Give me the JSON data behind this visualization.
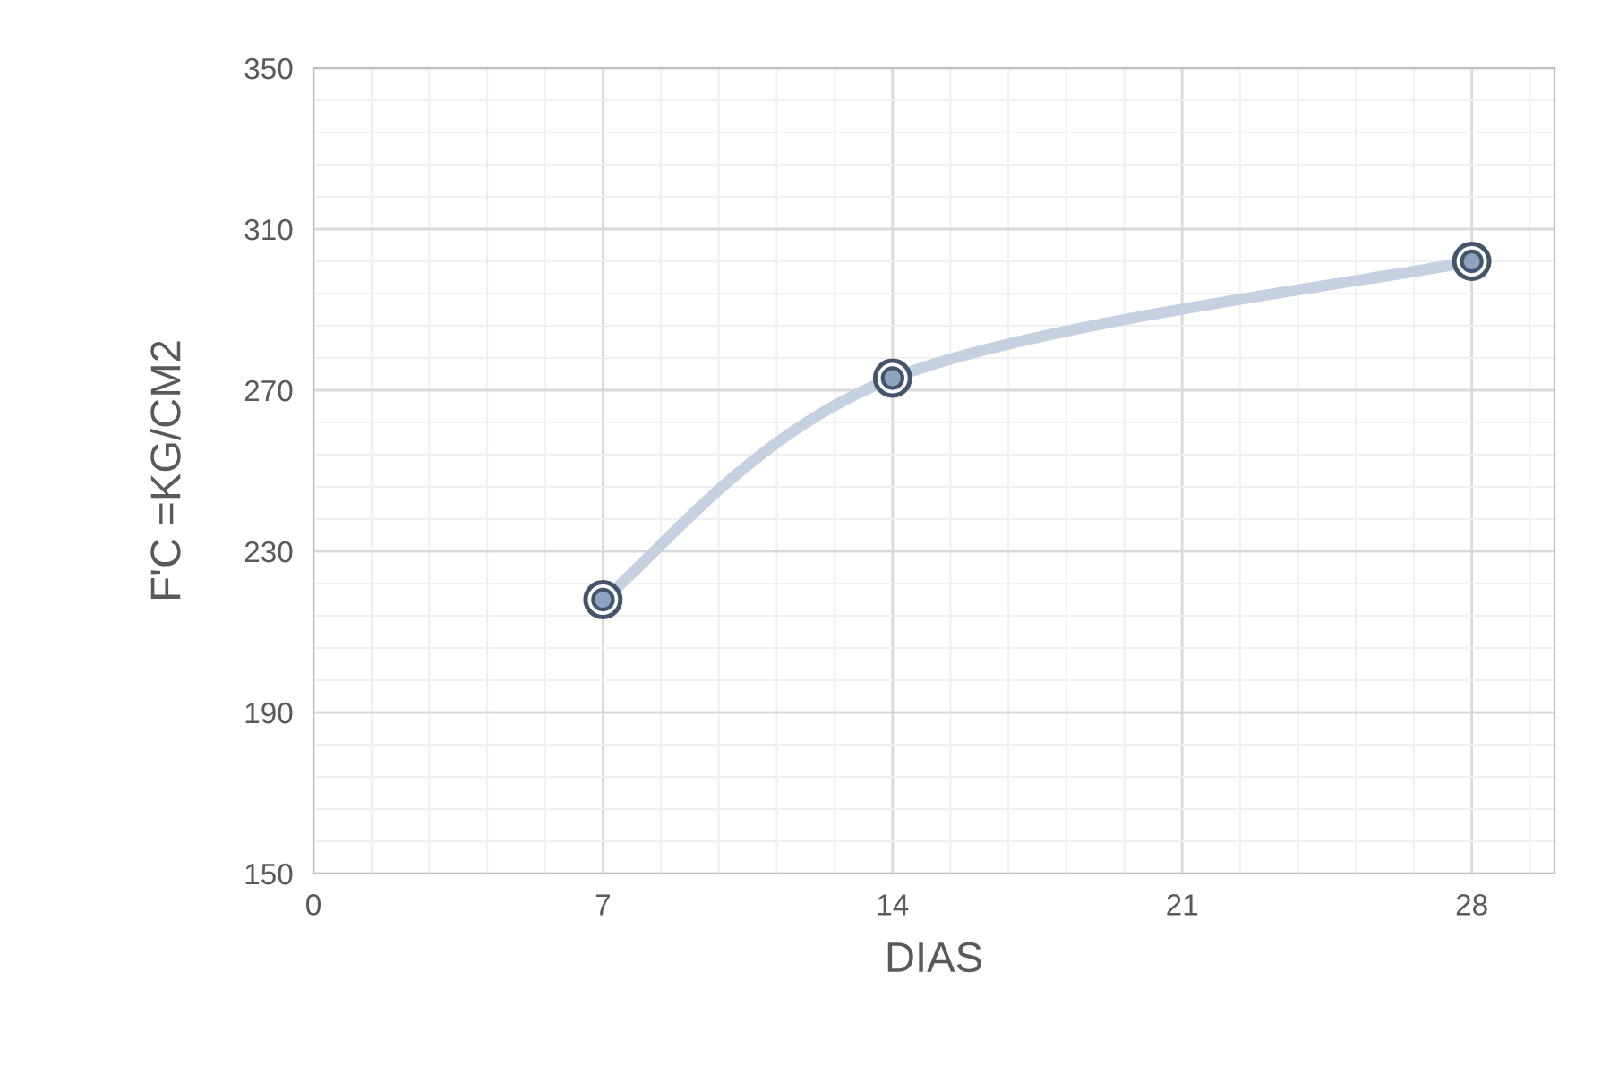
{
  "chart_data": {
    "type": "line",
    "xlabel": "DIAS",
    "ylabel": "F'C =KG/CM2",
    "x": [
      7,
      14,
      28
    ],
    "series": [
      {
        "color": "#c5d0e0",
        "values": [
          218,
          273,
          302
        ]
      }
    ],
    "xlim": [
      0,
      30
    ],
    "xticks": [
      0,
      7,
      14,
      21,
      28
    ],
    "ylim": [
      150,
      350
    ],
    "yticks": [
      150,
      190,
      230,
      270,
      310,
      350
    ],
    "grid": true,
    "marker": "circle",
    "line_style": "solid",
    "legend": false
  }
}
